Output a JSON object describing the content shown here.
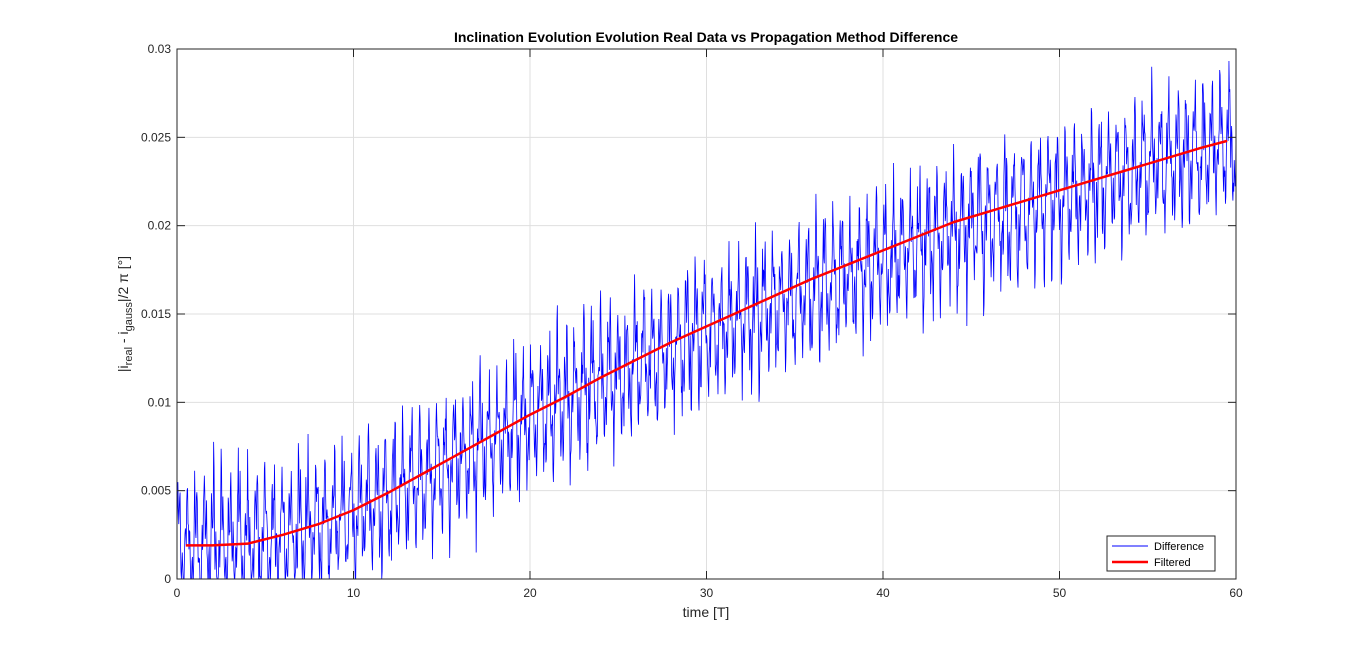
{
  "chart_data": {
    "type": "line",
    "title": "Inclination Evolution Evolution Real Data vs Propagation Method Difference",
    "xlabel": "time [T]",
    "ylabel": {
      "prefix": "|i",
      "sub1": "real",
      "mid": " - i",
      "sub2": "gauss",
      "suffix": "|/2 π [°]"
    },
    "xlim": [
      0,
      60
    ],
    "ylim": [
      0,
      0.03
    ],
    "xticks": [
      0,
      10,
      20,
      30,
      40,
      50,
      60
    ],
    "xtick_labels": [
      "0",
      "10",
      "20",
      "30",
      "40",
      "50",
      "60"
    ],
    "yticks": [
      0,
      0.005,
      0.01,
      0.015,
      0.02,
      0.025,
      0.03
    ],
    "ytick_labels": [
      "0",
      "0.005",
      "0.01",
      "0.015",
      "0.02",
      "0.025",
      "0.03"
    ],
    "grid": true,
    "legend_position": "bottom-right",
    "series": [
      {
        "name": "Difference",
        "color": "#0000ff",
        "style": "oscillating",
        "x_range": [
          0,
          60
        ],
        "trend_x": [
          0,
          5,
          10,
          15,
          20,
          25,
          30,
          35,
          40,
          45,
          50,
          55,
          60
        ],
        "trend_y": [
          0.0019,
          0.0023,
          0.0037,
          0.0062,
          0.0091,
          0.0117,
          0.0139,
          0.016,
          0.0181,
          0.0201,
          0.0216,
          0.0233,
          0.0248
        ],
        "amplitude": 0.0035
      },
      {
        "name": "Filtered",
        "color": "#ff0000",
        "x": [
          0.5,
          2,
          4,
          6,
          8,
          10,
          12,
          14,
          16,
          18,
          20,
          22,
          24,
          26,
          28,
          30,
          32,
          34,
          36,
          38,
          40,
          42,
          44,
          46,
          48,
          50,
          52,
          54,
          56,
          58,
          59.5
        ],
        "y": [
          0.0019,
          0.0019,
          0.002,
          0.0025,
          0.0031,
          0.0039,
          0.0049,
          0.006,
          0.0071,
          0.0082,
          0.0093,
          0.0103,
          0.0114,
          0.0124,
          0.0134,
          0.0143,
          0.0152,
          0.0161,
          0.017,
          0.0178,
          0.0186,
          0.0194,
          0.0202,
          0.0208,
          0.0214,
          0.022,
          0.0226,
          0.0232,
          0.0238,
          0.0244,
          0.0248
        ]
      }
    ]
  }
}
